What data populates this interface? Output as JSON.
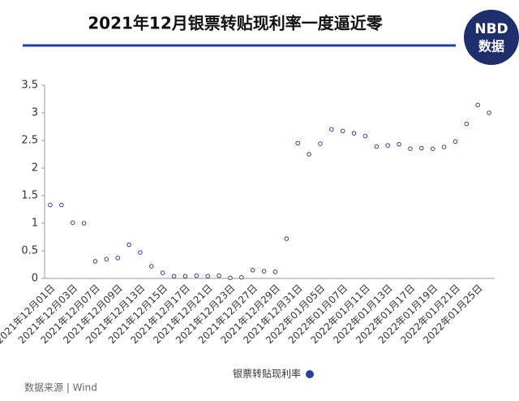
{
  "chart_data": {
    "type": "line",
    "title": "2021年12月银票转贴现利率一度逼近零",
    "categories": [
      "2021年12月01日",
      null,
      "2021年12月03日",
      null,
      "2021年12月07日",
      null,
      "2021年12月09日",
      null,
      "2021年12月13日",
      null,
      "2021年12月15日",
      null,
      "2021年12月17日",
      null,
      "2021年12月21日",
      null,
      "2021年12月23日",
      null,
      "2021年12月27日",
      null,
      "2021年12月29日",
      null,
      "2021年12月31日",
      null,
      "2022年01月05日",
      null,
      "2022年01月07日",
      null,
      "2022年01月11日",
      null,
      "2022年01月13日",
      null,
      "2022年01月17日",
      null,
      "2022年01月19日",
      null,
      "2022年01月21日",
      null,
      "2022年01月25日",
      null
    ],
    "series": [
      {
        "name": "银票转贴现利率",
        "color": "#2b3f9e",
        "values": [
          1.33,
          1.33,
          1.01,
          1.0,
          0.31,
          0.35,
          0.37,
          0.61,
          0.47,
          0.22,
          0.1,
          0.04,
          0.04,
          0.05,
          0.04,
          0.05,
          0.01,
          0.02,
          0.15,
          0.13,
          0.12,
          0.72,
          2.45,
          2.25,
          2.44,
          2.7,
          2.67,
          2.63,
          2.58,
          2.39,
          2.41,
          2.43,
          2.35,
          2.36,
          2.35,
          2.38,
          2.48,
          2.8,
          3.14,
          3.0
        ]
      }
    ],
    "ylim": [
      0,
      3.5
    ],
    "yticks": [
      0,
      0.5,
      1,
      1.5,
      2,
      2.5,
      3,
      3.5
    ],
    "grid": false
  },
  "logo": {
    "line1": "NBD",
    "line2": "数据"
  },
  "source": "数据来源 | Wind"
}
